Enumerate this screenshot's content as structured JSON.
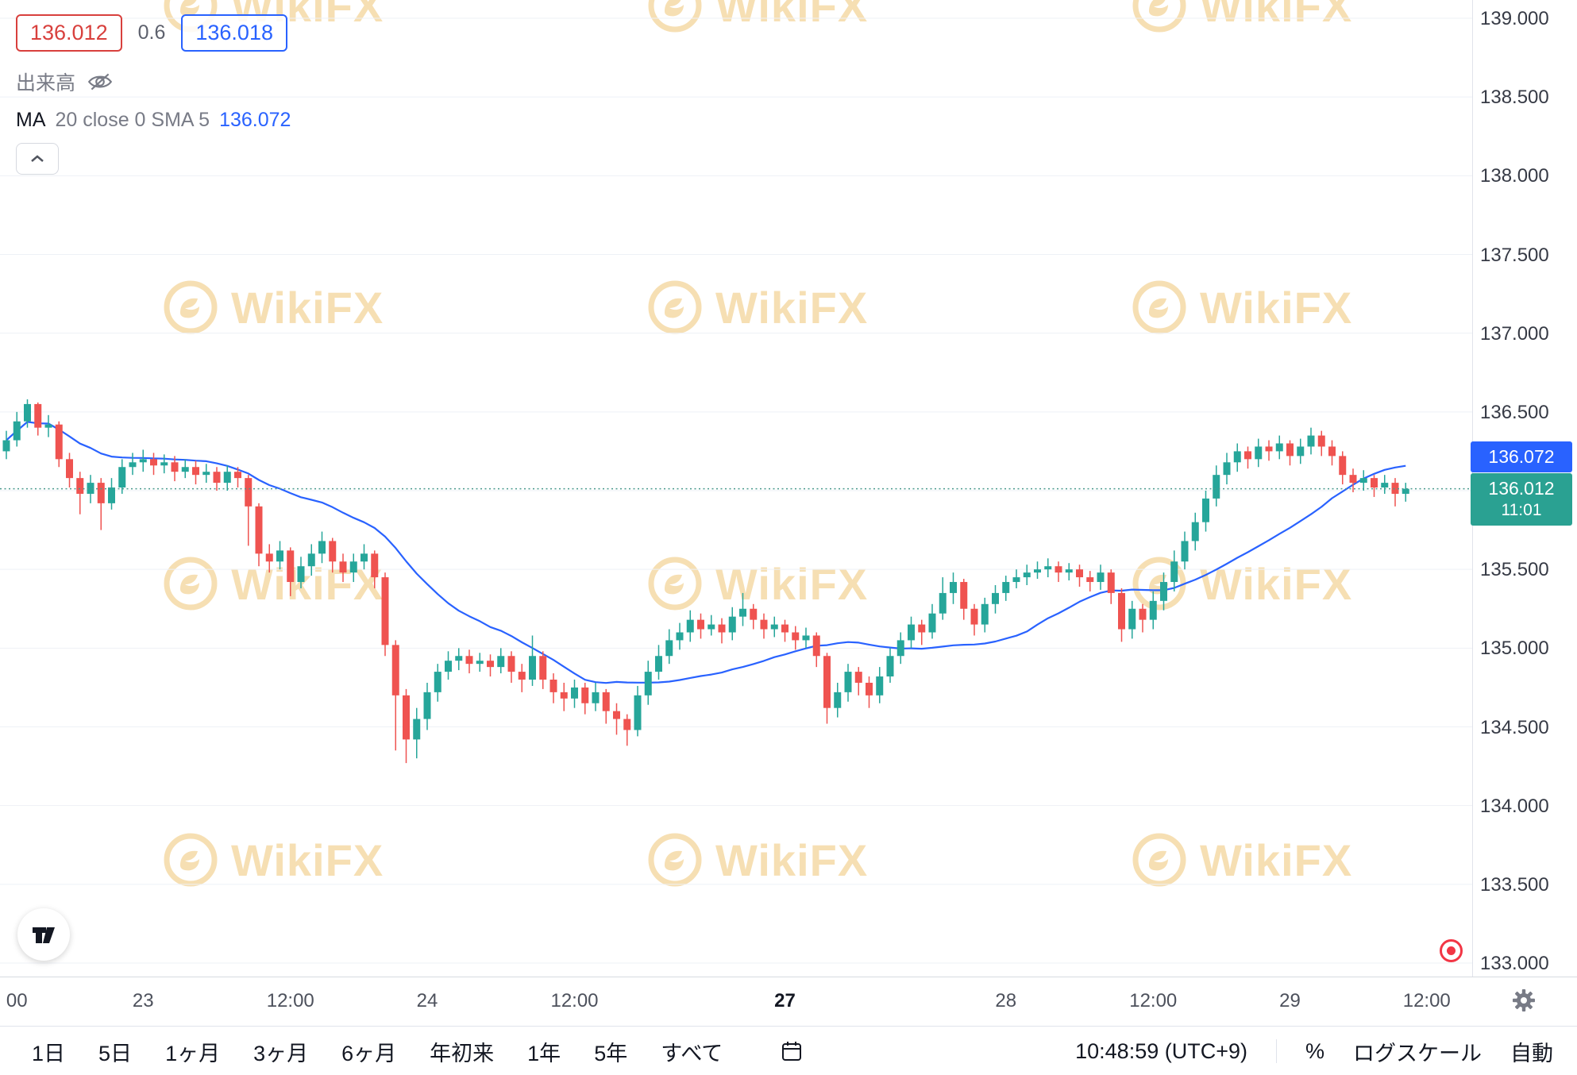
{
  "quote": {
    "bid": "136.012",
    "spread": "0.6",
    "ask": "136.018"
  },
  "legend": {
    "volume_label": "出来高",
    "ma_name": "MA",
    "ma_params": "20 close 0 SMA 5",
    "ma_value": "136.072"
  },
  "badges": {
    "ma_value": "136.072",
    "last_price": "136.012",
    "last_time": "11:01"
  },
  "watermark": {
    "text": "WikiFX"
  },
  "price_axis": {
    "labels": [
      "139.000",
      "138.500",
      "138.000",
      "137.500",
      "137.000",
      "136.500",
      "136.000",
      "135.500",
      "135.000",
      "134.500",
      "134.000",
      "133.500",
      "133.000"
    ]
  },
  "toolbar": {
    "ranges": [
      "1日",
      "5日",
      "1ヶ月",
      "3ヶ月",
      "6ヶ月",
      "年初来",
      "1年",
      "5年",
      "すべて"
    ],
    "clock": "10:48:59 (UTC+9)",
    "percent": "%",
    "log_scale": "ログスケール",
    "auto": "自動"
  },
  "icons": [
    "eye-slash-icon",
    "chevron-up-icon",
    "tradingview-logo",
    "record-icon",
    "gear-icon",
    "go-to-date-icon",
    "wikifx-logo"
  ],
  "colors": {
    "up": "#26a69a",
    "down": "#ef5350",
    "ma": "#2962ff",
    "grid": "#eef1f6",
    "dotted": "#4a9a8d",
    "watermark": "#eec06a",
    "badge_last": "#2aa192",
    "badge_ma": "#2962ff",
    "bid_red": "#d8403d",
    "ask_blue": "#2962ff"
  },
  "chart_data": {
    "type": "candlestick",
    "ylim": [
      133.0,
      139.0
    ],
    "price_step": 0.5,
    "last_price": 136.012,
    "ma": {
      "period": 20,
      "source": "close",
      "value": 136.072
    },
    "x_ticks": [
      {
        "index": 1,
        "label": "00"
      },
      {
        "index": 13,
        "label": "23"
      },
      {
        "index": 27,
        "label": "12:00"
      },
      {
        "index": 40,
        "label": "24"
      },
      {
        "index": 54,
        "label": "12:00"
      },
      {
        "index": 74,
        "label": "27",
        "bold": true
      },
      {
        "index": 95,
        "label": "28"
      },
      {
        "index": 109,
        "label": "12:00"
      },
      {
        "index": 122,
        "label": "29"
      },
      {
        "index": 135,
        "label": "12:00"
      }
    ],
    "candles": [
      [
        136.25,
        136.38,
        136.2,
        136.32
      ],
      [
        136.32,
        136.5,
        136.28,
        136.44
      ],
      [
        136.44,
        136.58,
        136.4,
        136.55
      ],
      [
        136.55,
        136.56,
        136.35,
        136.4
      ],
      [
        136.4,
        136.48,
        136.34,
        136.42
      ],
      [
        136.42,
        136.44,
        136.15,
        136.2
      ],
      [
        136.2,
        136.24,
        136.02,
        136.08
      ],
      [
        136.08,
        136.12,
        135.85,
        135.98
      ],
      [
        135.98,
        136.1,
        135.92,
        136.05
      ],
      [
        136.05,
        136.08,
        135.75,
        135.92
      ],
      [
        135.92,
        136.08,
        135.88,
        136.02
      ],
      [
        136.02,
        136.2,
        135.98,
        136.15
      ],
      [
        136.15,
        136.24,
        136.1,
        136.18
      ],
      [
        136.18,
        136.26,
        136.12,
        136.2
      ],
      [
        136.2,
        136.24,
        136.1,
        136.16
      ],
      [
        136.16,
        136.23,
        136.11,
        136.18
      ],
      [
        136.18,
        136.22,
        136.06,
        136.12
      ],
      [
        136.12,
        136.2,
        136.08,
        136.15
      ],
      [
        136.15,
        136.19,
        136.04,
        136.1
      ],
      [
        136.1,
        136.17,
        136.05,
        136.12
      ],
      [
        136.12,
        136.15,
        136.0,
        136.05
      ],
      [
        136.05,
        136.16,
        136.0,
        136.12
      ],
      [
        136.12,
        136.15,
        136.02,
        136.08
      ],
      [
        136.08,
        136.1,
        135.65,
        135.9
      ],
      [
        135.9,
        135.92,
        135.52,
        135.6
      ],
      [
        135.6,
        135.66,
        135.48,
        135.55
      ],
      [
        135.55,
        135.68,
        135.5,
        135.62
      ],
      [
        135.62,
        135.64,
        135.33,
        135.42
      ],
      [
        135.42,
        135.58,
        135.38,
        135.52
      ],
      [
        135.52,
        135.66,
        135.46,
        135.6
      ],
      [
        135.6,
        135.74,
        135.54,
        135.68
      ],
      [
        135.68,
        135.7,
        135.48,
        135.55
      ],
      [
        135.55,
        135.6,
        135.42,
        135.48
      ],
      [
        135.48,
        135.6,
        135.42,
        135.55
      ],
      [
        135.55,
        135.66,
        135.5,
        135.6
      ],
      [
        135.6,
        135.62,
        135.38,
        135.45
      ],
      [
        135.45,
        135.48,
        134.95,
        135.02
      ],
      [
        135.02,
        135.05,
        134.35,
        134.7
      ],
      [
        134.7,
        134.74,
        134.27,
        134.42
      ],
      [
        134.42,
        134.62,
        134.3,
        134.55
      ],
      [
        134.55,
        134.78,
        134.48,
        134.72
      ],
      [
        134.72,
        134.9,
        134.66,
        134.85
      ],
      [
        134.85,
        134.98,
        134.8,
        134.92
      ],
      [
        134.92,
        135.0,
        134.86,
        134.95
      ],
      [
        134.95,
        134.99,
        134.84,
        134.9
      ],
      [
        134.9,
        134.97,
        134.85,
        134.92
      ],
      [
        134.92,
        134.96,
        134.82,
        134.88
      ],
      [
        134.88,
        135.0,
        134.84,
        134.95
      ],
      [
        134.95,
        134.98,
        134.78,
        134.85
      ],
      [
        134.85,
        134.9,
        134.72,
        134.8
      ],
      [
        134.8,
        135.08,
        134.76,
        134.95
      ],
      [
        134.95,
        134.98,
        134.74,
        134.8
      ],
      [
        134.8,
        134.84,
        134.65,
        134.72
      ],
      [
        134.72,
        134.78,
        134.6,
        134.68
      ],
      [
        134.68,
        134.8,
        134.62,
        134.75
      ],
      [
        134.75,
        134.78,
        134.58,
        134.65
      ],
      [
        134.65,
        134.78,
        134.6,
        134.72
      ],
      [
        134.72,
        134.74,
        134.52,
        134.6
      ],
      [
        134.6,
        134.65,
        134.45,
        134.55
      ],
      [
        134.55,
        134.58,
        134.38,
        134.48
      ],
      [
        134.48,
        134.76,
        134.44,
        134.7
      ],
      [
        134.7,
        134.92,
        134.64,
        134.85
      ],
      [
        134.85,
        135.02,
        134.8,
        134.95
      ],
      [
        134.95,
        135.12,
        134.9,
        135.05
      ],
      [
        135.05,
        135.16,
        134.99,
        135.1
      ],
      [
        135.1,
        135.24,
        135.04,
        135.18
      ],
      [
        135.18,
        135.22,
        135.06,
        135.12
      ],
      [
        135.12,
        135.21,
        135.08,
        135.15
      ],
      [
        135.15,
        135.19,
        135.03,
        135.1
      ],
      [
        135.1,
        135.26,
        135.05,
        135.2
      ],
      [
        135.2,
        135.35,
        135.14,
        135.25
      ],
      [
        135.25,
        135.28,
        135.12,
        135.18
      ],
      [
        135.18,
        135.22,
        135.06,
        135.12
      ],
      [
        135.12,
        135.2,
        135.07,
        135.15
      ],
      [
        135.15,
        135.18,
        135.04,
        135.1
      ],
      [
        135.1,
        135.14,
        134.99,
        135.05
      ],
      [
        135.05,
        135.13,
        135.0,
        135.08
      ],
      [
        135.08,
        135.1,
        134.88,
        134.95
      ],
      [
        134.95,
        134.97,
        134.52,
        134.62
      ],
      [
        134.62,
        134.78,
        134.56,
        134.72
      ],
      [
        134.72,
        134.9,
        134.66,
        134.85
      ],
      [
        134.85,
        134.88,
        134.7,
        134.78
      ],
      [
        134.78,
        134.82,
        134.62,
        134.7
      ],
      [
        134.7,
        134.88,
        134.65,
        134.82
      ],
      [
        134.82,
        135.0,
        134.78,
        134.95
      ],
      [
        134.95,
        135.1,
        134.9,
        135.05
      ],
      [
        135.05,
        135.2,
        135.0,
        135.15
      ],
      [
        135.15,
        135.18,
        135.02,
        135.1
      ],
      [
        135.1,
        135.28,
        135.06,
        135.22
      ],
      [
        135.22,
        135.45,
        135.18,
        135.35
      ],
      [
        135.35,
        135.48,
        135.28,
        135.42
      ],
      [
        135.42,
        135.44,
        135.18,
        135.25
      ],
      [
        135.25,
        135.28,
        135.08,
        135.15
      ],
      [
        135.15,
        135.32,
        135.1,
        135.28
      ],
      [
        135.28,
        135.4,
        135.22,
        135.35
      ],
      [
        135.35,
        135.46,
        135.3,
        135.42
      ],
      [
        135.42,
        135.5,
        135.38,
        135.45
      ],
      [
        135.45,
        135.53,
        135.4,
        135.48
      ],
      [
        135.48,
        135.55,
        135.44,
        135.5
      ],
      [
        135.5,
        135.57,
        135.45,
        135.52
      ],
      [
        135.52,
        135.55,
        135.42,
        135.48
      ],
      [
        135.48,
        135.54,
        135.43,
        135.5
      ],
      [
        135.5,
        135.53,
        135.39,
        135.45
      ],
      [
        135.45,
        135.49,
        135.36,
        135.42
      ],
      [
        135.42,
        135.53,
        135.37,
        135.48
      ],
      [
        135.48,
        135.5,
        135.28,
        135.35
      ],
      [
        135.35,
        135.38,
        135.04,
        135.12
      ],
      [
        135.12,
        135.3,
        135.06,
        135.25
      ],
      [
        135.25,
        135.28,
        135.1,
        135.18
      ],
      [
        135.18,
        135.36,
        135.12,
        135.3
      ],
      [
        135.3,
        135.48,
        135.24,
        135.42
      ],
      [
        135.42,
        135.62,
        135.36,
        135.55
      ],
      [
        135.55,
        135.74,
        135.5,
        135.68
      ],
      [
        135.68,
        135.86,
        135.62,
        135.8
      ],
      [
        135.8,
        136.0,
        135.74,
        135.95
      ],
      [
        135.95,
        136.16,
        135.9,
        136.1
      ],
      [
        136.1,
        136.24,
        136.04,
        136.18
      ],
      [
        136.18,
        136.3,
        136.12,
        136.25
      ],
      [
        136.25,
        136.28,
        136.14,
        136.2
      ],
      [
        136.2,
        136.33,
        136.15,
        136.28
      ],
      [
        136.28,
        136.32,
        136.19,
        136.25
      ],
      [
        136.25,
        136.35,
        136.2,
        136.3
      ],
      [
        136.3,
        136.32,
        136.16,
        136.22
      ],
      [
        136.22,
        136.33,
        136.17,
        136.28
      ],
      [
        136.28,
        136.4,
        136.23,
        136.35
      ],
      [
        136.35,
        136.38,
        136.22,
        136.28
      ],
      [
        136.28,
        136.32,
        136.16,
        136.22
      ],
      [
        136.22,
        136.25,
        136.04,
        136.1
      ],
      [
        136.1,
        136.14,
        135.99,
        136.05
      ],
      [
        136.05,
        136.13,
        136.0,
        136.08
      ],
      [
        136.08,
        136.1,
        135.96,
        136.02
      ],
      [
        136.02,
        136.1,
        135.98,
        136.05
      ],
      [
        136.05,
        136.08,
        135.9,
        135.98
      ],
      [
        135.98,
        136.05,
        135.93,
        136.012
      ]
    ]
  }
}
